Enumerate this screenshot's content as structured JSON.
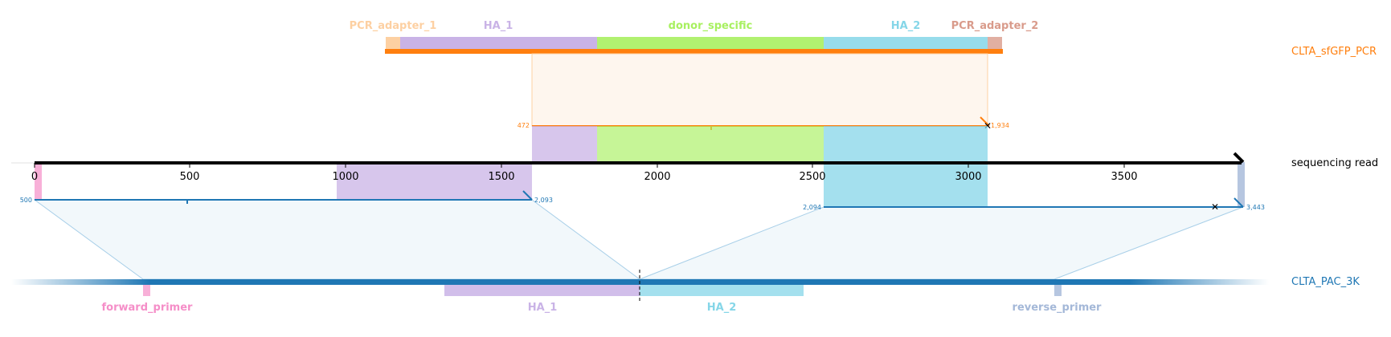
{
  "target": {
    "name": "CLTA_sfGFP_PCR",
    "color": "#ff7f0e",
    "features": [
      {
        "label": "PCR_adapter_1",
        "color": "#fdd0a2"
      },
      {
        "label": "HA_1",
        "color": "#c9b3e6"
      },
      {
        "label": "donor_specific",
        "color": "#a8f060"
      },
      {
        "label": "HA_2",
        "color": "#85d6e8"
      },
      {
        "label": "PCR_adapter_2",
        "color": "#d99b8b"
      }
    ],
    "alignment": {
      "start": "472",
      "end": "1,934"
    }
  },
  "read": {
    "name": "sequencing read",
    "ticks": [
      "0",
      "500",
      "1000",
      "1500",
      "2000",
      "2500",
      "3000",
      "3500"
    ],
    "alignment_1": {
      "start": "500",
      "end": "2,093"
    },
    "alignment_2": {
      "start": "2,094",
      "end": "3,443"
    }
  },
  "reference": {
    "name": "CLTA_PAC_3K",
    "color": "#1f77b4",
    "features": [
      {
        "label": "forward_primer",
        "color": "#f58ec8"
      },
      {
        "label": "HA_1",
        "color": "#c9b3e6"
      },
      {
        "label": "HA_2",
        "color": "#85d6e8"
      },
      {
        "label": "reverse_primer",
        "color": "#a4b8d8"
      }
    ]
  }
}
